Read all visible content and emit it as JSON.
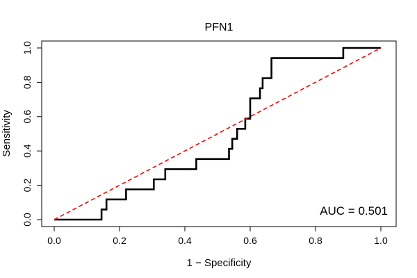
{
  "chart_data": {
    "type": "line",
    "title": "PFN1",
    "xlabel": "1 − Specificity",
    "ylabel": "Sensitivity",
    "xlim": [
      0,
      1
    ],
    "ylim": [
      0,
      1
    ],
    "x_ticks": [
      "0.0",
      "0.2",
      "0.4",
      "0.6",
      "0.8",
      "1.0"
    ],
    "y_ticks": [
      "0.0",
      "0.2",
      "0.4",
      "0.6",
      "0.8",
      "1.0"
    ],
    "grid": false,
    "annotation": "AUC = 0.501",
    "series": [
      {
        "color": "#000000",
        "style": "solid-step",
        "points": [
          [
            0.0,
            0.0
          ],
          [
            0.145,
            0.0
          ],
          [
            0.145,
            0.059
          ],
          [
            0.16,
            0.059
          ],
          [
            0.16,
            0.118
          ],
          [
            0.22,
            0.118
          ],
          [
            0.22,
            0.176
          ],
          [
            0.305,
            0.176
          ],
          [
            0.305,
            0.235
          ],
          [
            0.34,
            0.235
          ],
          [
            0.34,
            0.294
          ],
          [
            0.435,
            0.294
          ],
          [
            0.435,
            0.353
          ],
          [
            0.535,
            0.353
          ],
          [
            0.535,
            0.412
          ],
          [
            0.545,
            0.412
          ],
          [
            0.545,
            0.471
          ],
          [
            0.56,
            0.471
          ],
          [
            0.56,
            0.529
          ],
          [
            0.585,
            0.529
          ],
          [
            0.585,
            0.588
          ],
          [
            0.6,
            0.588
          ],
          [
            0.6,
            0.706
          ],
          [
            0.63,
            0.706
          ],
          [
            0.63,
            0.765
          ],
          [
            0.638,
            0.765
          ],
          [
            0.638,
            0.824
          ],
          [
            0.665,
            0.824
          ],
          [
            0.665,
            0.941
          ],
          [
            0.885,
            0.941
          ],
          [
            0.885,
            1.0
          ],
          [
            1.0,
            1.0
          ]
        ]
      },
      {
        "color": "#ff0000",
        "style": "dashed",
        "points": [
          [
            0,
            0
          ],
          [
            1,
            1
          ]
        ]
      }
    ]
  }
}
